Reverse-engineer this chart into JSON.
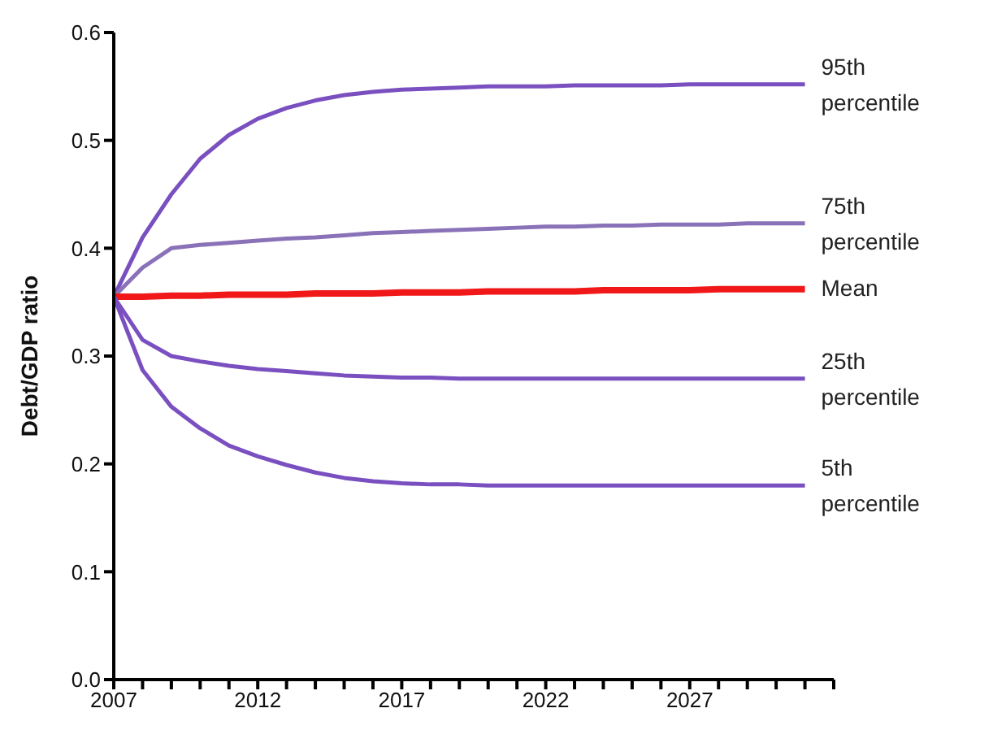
{
  "chart_data": {
    "type": "line",
    "ylabel": "Debt/GDP ratio",
    "x": [
      2007,
      2008,
      2009,
      2010,
      2011,
      2012,
      2013,
      2014,
      2015,
      2016,
      2017,
      2018,
      2019,
      2020,
      2021,
      2022,
      2023,
      2024,
      2025,
      2026,
      2027,
      2028,
      2029,
      2030,
      2031
    ],
    "xlim": [
      2007,
      2032
    ],
    "xticks": [
      2007,
      {
        "value": 2008,
        "label": null
      },
      {
        "value": 2009,
        "label": null
      },
      {
        "value": 2010,
        "label": null
      },
      {
        "value": 2011,
        "label": null
      },
      2012,
      {
        "value": 2013,
        "label": null
      },
      {
        "value": 2014,
        "label": null
      },
      {
        "value": 2015,
        "label": null
      },
      {
        "value": 2016,
        "label": null
      },
      2017,
      {
        "value": 2018,
        "label": null
      },
      {
        "value": 2019,
        "label": null
      },
      {
        "value": 2020,
        "label": null
      },
      {
        "value": 2021,
        "label": null
      },
      2022,
      {
        "value": 2023,
        "label": null
      },
      {
        "value": 2024,
        "label": null
      },
      {
        "value": 2025,
        "label": null
      },
      {
        "value": 2026,
        "label": null
      },
      2027,
      {
        "value": 2028,
        "label": null
      },
      {
        "value": 2029,
        "label": null
      },
      {
        "value": 2030,
        "label": null
      },
      {
        "value": 2031,
        "label": null
      },
      {
        "value": 2032,
        "label": null
      }
    ],
    "ylim": [
      0,
      0.6
    ],
    "yticks": [
      {
        "value": 0,
        "label": "0.0"
      },
      0.1,
      0.2,
      0.3,
      0.4,
      0.5,
      0.6
    ],
    "grid": false,
    "legend": false,
    "marker": "none",
    "line_style": "solid",
    "series": [
      {
        "name": "95th percentile",
        "color": "#7a4fc0",
        "values": [
          0.355,
          0.41,
          0.45,
          0.483,
          0.505,
          0.52,
          0.53,
          0.537,
          0.542,
          0.545,
          0.547,
          0.548,
          0.549,
          0.55,
          0.55,
          0.55,
          0.551,
          0.551,
          0.551,
          0.551,
          0.552,
          0.552,
          0.552,
          0.552,
          0.552
        ]
      },
      {
        "name": "75th percentile",
        "color": "#8a72b8",
        "values": [
          0.355,
          0.382,
          0.4,
          0.403,
          0.405,
          0.407,
          0.409,
          0.41,
          0.412,
          0.414,
          0.415,
          0.416,
          0.417,
          0.418,
          0.419,
          0.42,
          0.42,
          0.421,
          0.421,
          0.422,
          0.422,
          0.422,
          0.423,
          0.423,
          0.423
        ]
      },
      {
        "name": "Mean",
        "color": "#f01818",
        "values": [
          0.355,
          0.355,
          0.356,
          0.356,
          0.357,
          0.357,
          0.357,
          0.358,
          0.358,
          0.358,
          0.359,
          0.359,
          0.359,
          0.36,
          0.36,
          0.36,
          0.36,
          0.361,
          0.361,
          0.361,
          0.361,
          0.362,
          0.362,
          0.362,
          0.362
        ]
      },
      {
        "name": "25th percentile",
        "color": "#7a4fc0",
        "values": [
          0.355,
          0.315,
          0.3,
          0.295,
          0.291,
          0.288,
          0.286,
          0.284,
          0.282,
          0.281,
          0.28,
          0.28,
          0.279,
          0.279,
          0.279,
          0.279,
          0.279,
          0.279,
          0.279,
          0.279,
          0.279,
          0.279,
          0.279,
          0.279,
          0.279
        ]
      },
      {
        "name": "5th percentile",
        "color": "#7a4fc0",
        "values": [
          0.355,
          0.287,
          0.253,
          0.233,
          0.217,
          0.207,
          0.199,
          0.192,
          0.187,
          0.184,
          0.182,
          0.181,
          0.181,
          0.18,
          0.18,
          0.18,
          0.18,
          0.18,
          0.18,
          0.18,
          0.18,
          0.18,
          0.18,
          0.18,
          0.18
        ]
      }
    ]
  }
}
